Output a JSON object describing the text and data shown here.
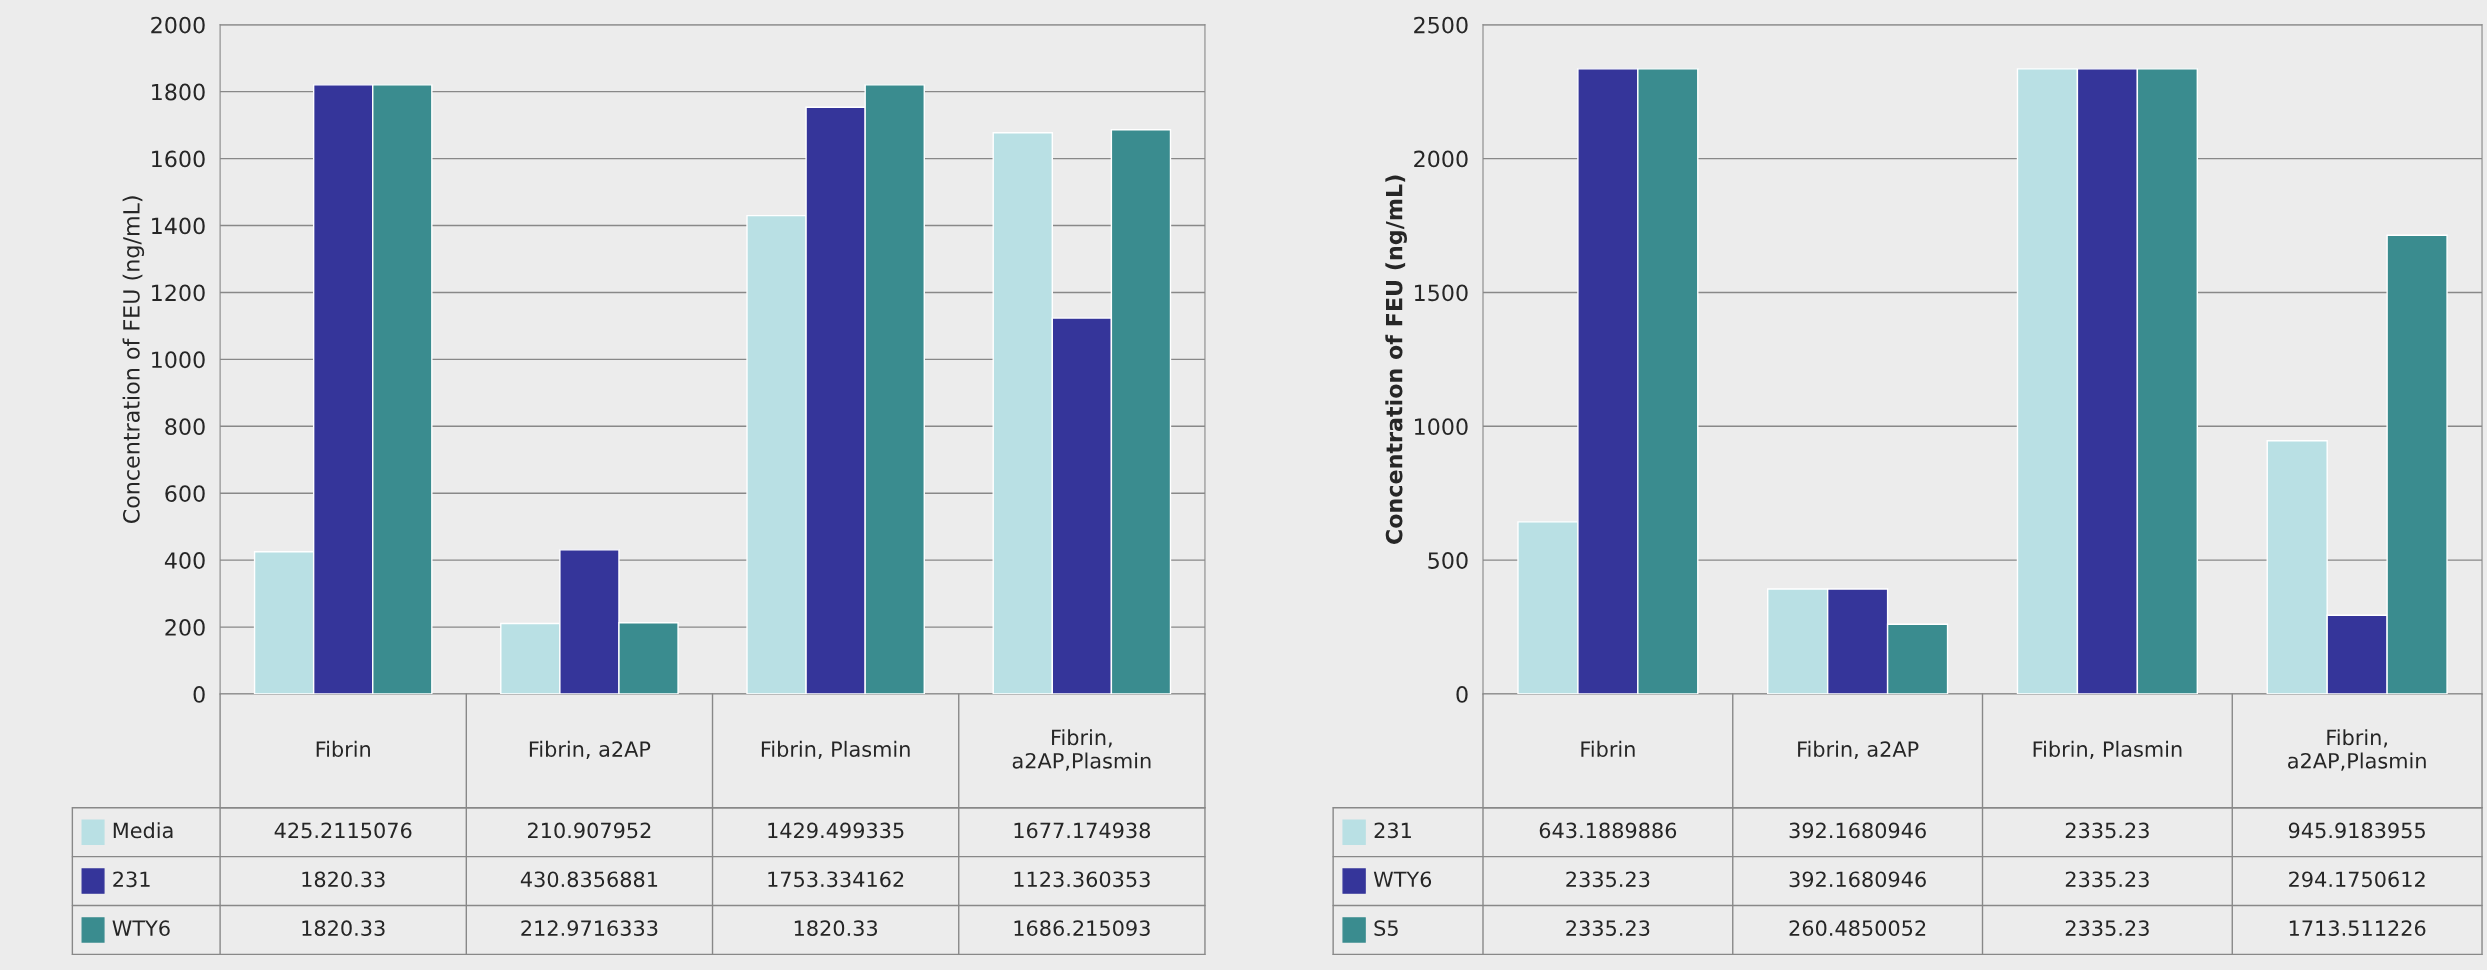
{
  "chart_data": [
    {
      "type": "bar",
      "ylabel": "Concentration of FEU (ng/mL)",
      "categories": [
        "Fibrin",
        "Fibrin, a2AP",
        "Fibrin, Plasmin",
        "Fibrin, a2AP,Plasmin"
      ],
      "ylim": [
        0,
        2000
      ],
      "yticks": [
        0,
        200,
        400,
        600,
        800,
        1000,
        1200,
        1400,
        1600,
        1800,
        2000
      ],
      "grid": "y",
      "data_labels": true,
      "legend": "bottom",
      "series": [
        {
          "name": "Media",
          "color": "#b9e0e4",
          "values": [
            425.2115076,
            210.907952,
            1429.499335,
            1677.174938
          ]
        },
        {
          "name": "231",
          "color": "#35359a",
          "values": [
            1820.33,
            430.8356881,
            1753.334162,
            1123.360353
          ]
        },
        {
          "name": "WTY6",
          "color": "#3a8c8f",
          "values": [
            1820.33,
            212.9716333,
            1820.33,
            1686.215093
          ]
        }
      ]
    },
    {
      "type": "bar",
      "ylabel": "Concentration of FEU (ng/mL)",
      "categories": [
        "Fibrin",
        "Fibrin, a2AP",
        "Fibrin, Plasmin",
        "Fibrin, a2AP,Plasmin"
      ],
      "ylim": [
        0,
        2500
      ],
      "yticks": [
        0,
        500,
        1000,
        1500,
        2000,
        2500
      ],
      "grid": "y",
      "data_labels": true,
      "legend": "bottom",
      "series": [
        {
          "name": "231",
          "color": "#b9e0e4",
          "values": [
            643.1889886,
            392.1680946,
            2335.23,
            945.9183955
          ]
        },
        {
          "name": "WTY6",
          "color": "#35359a",
          "values": [
            2335.23,
            392.1680946,
            2335.23,
            294.1750612
          ]
        },
        {
          "name": "S5",
          "color": "#3a8c8f",
          "values": [
            2335.23,
            260.4850052,
            2335.23,
            1713.511226
          ]
        }
      ]
    }
  ]
}
